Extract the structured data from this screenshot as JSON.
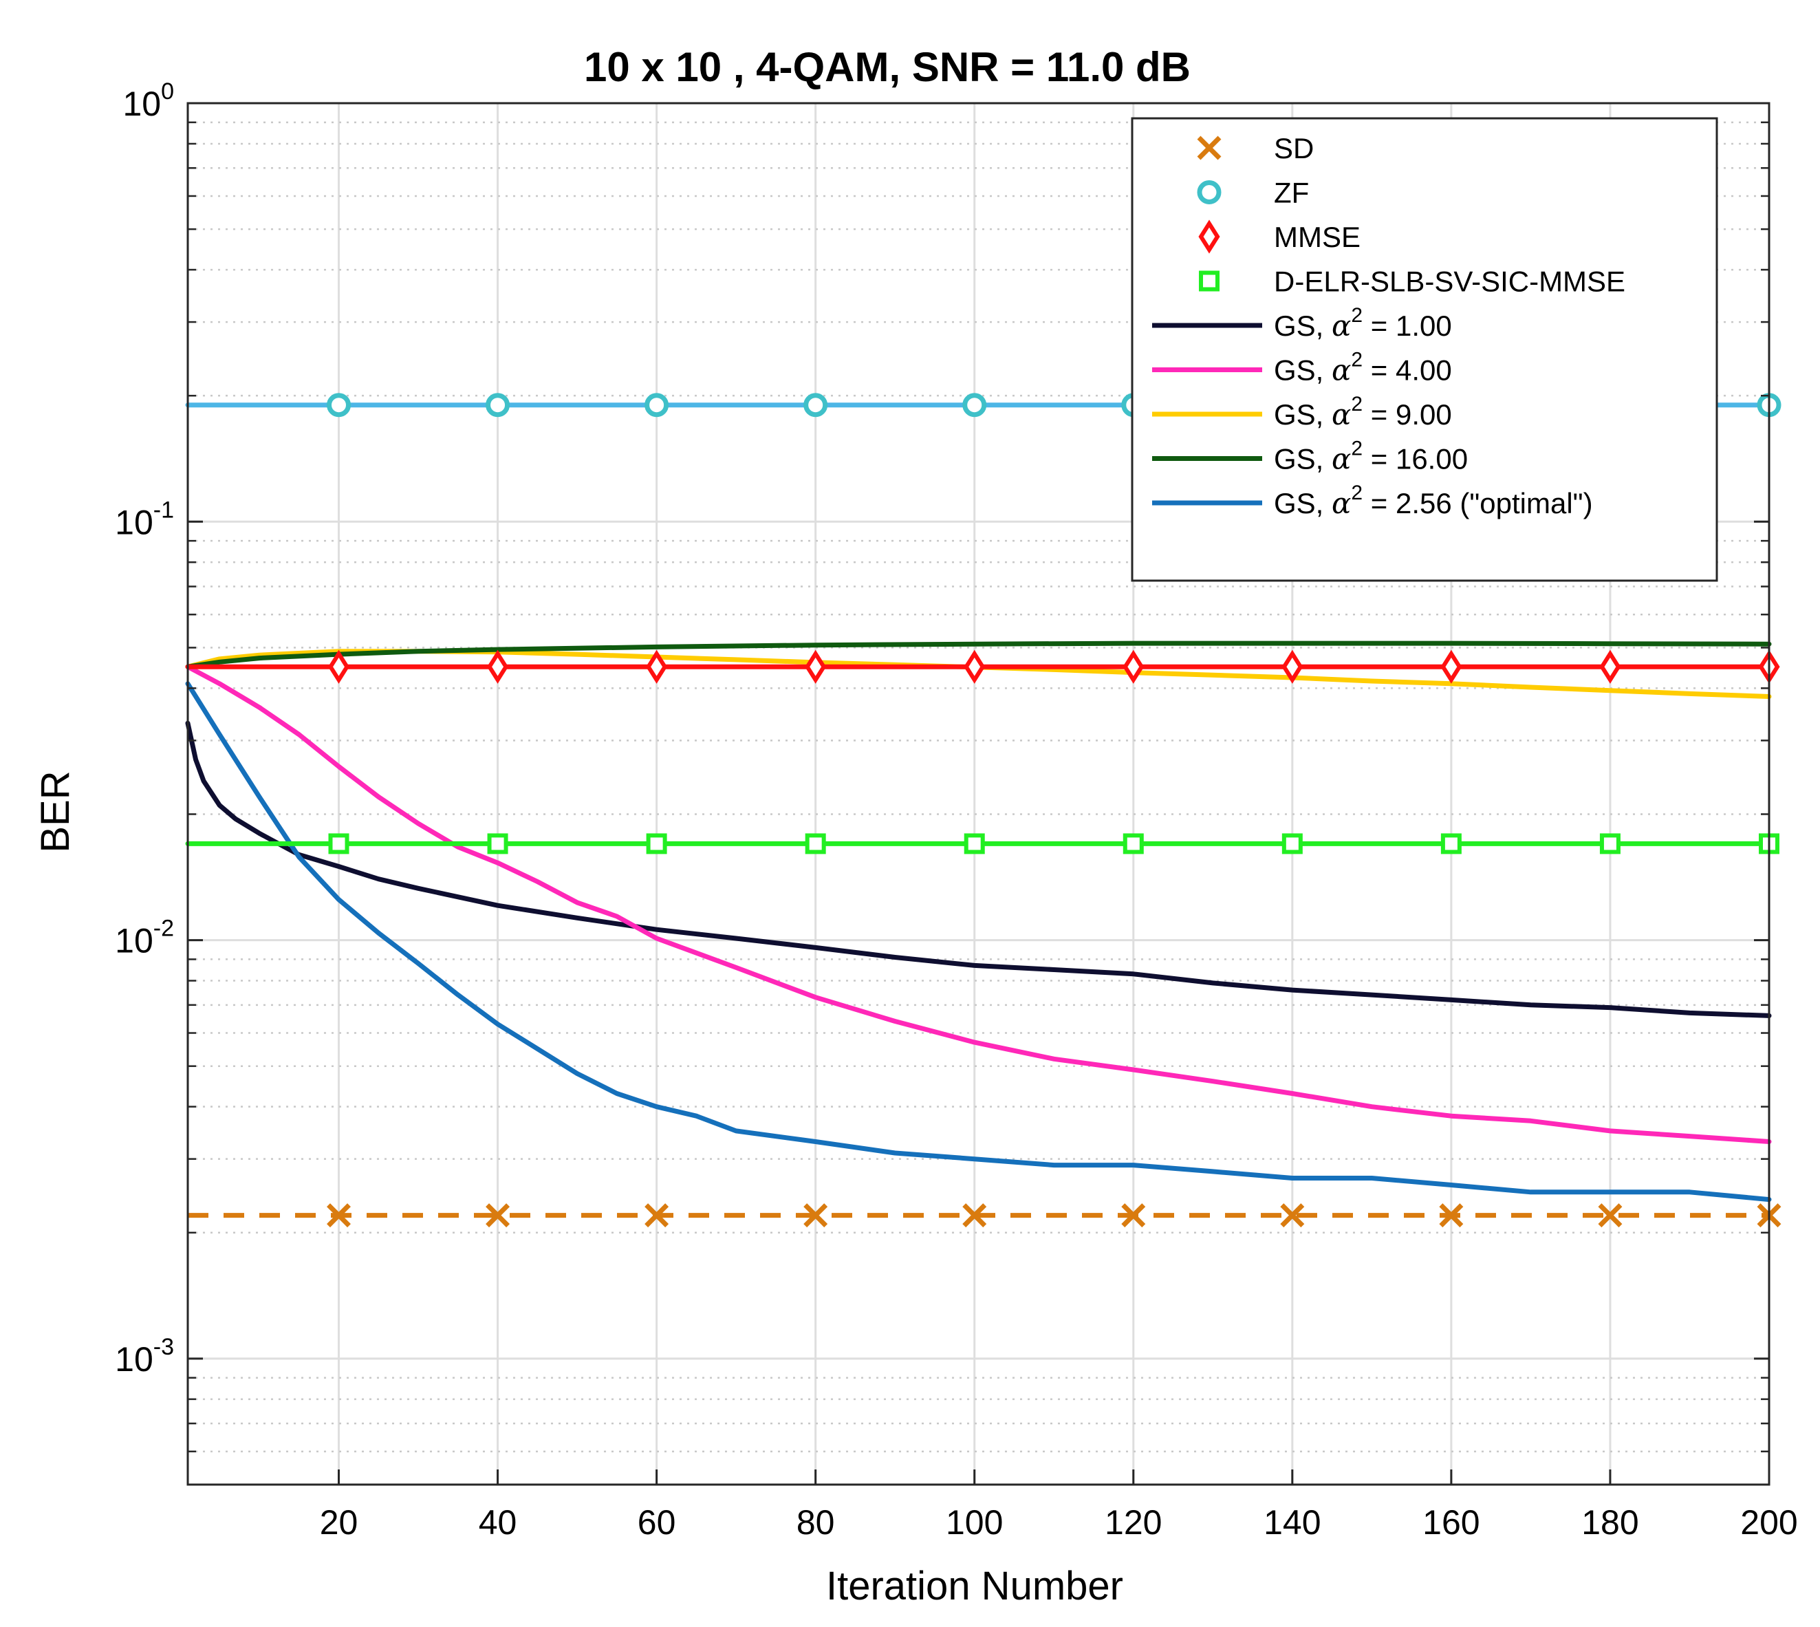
{
  "chart_data": {
    "type": "line",
    "title": "10 x 10 , 4-QAM, SNR = 11.0 dB",
    "xlabel": "Iteration Number",
    "ylabel": "BER",
    "xlim": [
      1,
      200
    ],
    "ylim": [
      0.0005,
      1
    ],
    "yscale": "log",
    "grid": true,
    "legend_position": "top-right",
    "x_ticks": [
      20,
      40,
      60,
      80,
      100,
      120,
      140,
      160,
      180,
      200
    ],
    "x_tick_labels": [
      "20",
      "40",
      "60",
      "80",
      "100",
      "120",
      "140",
      "160",
      "180",
      "200"
    ],
    "y_ticks": [
      {
        "value": 1,
        "base": "10",
        "exp": "0"
      },
      {
        "value": 0.1,
        "base": "10",
        "exp": "-1"
      },
      {
        "value": 0.01,
        "base": "10",
        "exp": "-2"
      },
      {
        "value": 0.001,
        "base": "10",
        "exp": "-3"
      }
    ],
    "marker_x": [
      20,
      40,
      60,
      80,
      100,
      120,
      140,
      160,
      180,
      200
    ],
    "series": [
      {
        "name": "SD",
        "label": "SD",
        "color": "#D97B0F",
        "style": "dashed",
        "marker": "x",
        "legend_line": false,
        "x": [
          1,
          200
        ],
        "y": [
          0.0022,
          0.0022
        ]
      },
      {
        "name": "ZF",
        "label": "ZF",
        "color": "#3FC0C8",
        "line_color": "#4DB6E6",
        "style": "solid",
        "marker": "o",
        "legend_line": false,
        "x": [
          1,
          200
        ],
        "y": [
          0.19,
          0.19
        ]
      },
      {
        "name": "MMSE",
        "label": "MMSE",
        "color": "#FF1010",
        "style": "solid",
        "marker": "diamond",
        "legend_line": false,
        "x": [
          1,
          200
        ],
        "y": [
          0.045,
          0.045
        ]
      },
      {
        "name": "D-ELR-SLB-SV-SIC-MMSE",
        "label": "D-ELR-SLB-SV-SIC-MMSE",
        "color": "#22EE22",
        "style": "solid",
        "marker": "square",
        "legend_line": false,
        "x": [
          1,
          200
        ],
        "y": [
          0.017,
          0.017
        ]
      },
      {
        "name": "GS a2=1.00",
        "label_prefix": "GS, ",
        "label_alpha": "α",
        "label_sup": "2",
        "label_suffix": " = 1.00",
        "color": "#0E0E30",
        "style": "solid",
        "marker": "none",
        "legend_line": true,
        "x": [
          1,
          2,
          3,
          5,
          7,
          10,
          15,
          20,
          25,
          30,
          40,
          50,
          60,
          70,
          80,
          90,
          100,
          110,
          120,
          130,
          140,
          150,
          160,
          170,
          180,
          190,
          200
        ],
        "y": [
          0.033,
          0.027,
          0.024,
          0.021,
          0.0195,
          0.018,
          0.016,
          0.015,
          0.014,
          0.0133,
          0.0121,
          0.0113,
          0.0106,
          0.0101,
          0.0096,
          0.0091,
          0.0087,
          0.0085,
          0.0083,
          0.0079,
          0.0076,
          0.0074,
          0.0072,
          0.007,
          0.0069,
          0.0067,
          0.0066
        ]
      },
      {
        "name": "GS a2=4.00",
        "label_prefix": "GS, ",
        "label_alpha": "α",
        "label_sup": "2",
        "label_suffix": " = 4.00",
        "color": "#FF28B8",
        "style": "solid",
        "marker": "none",
        "legend_line": true,
        "x": [
          1,
          5,
          10,
          15,
          20,
          25,
          30,
          35,
          40,
          45,
          50,
          55,
          60,
          70,
          80,
          90,
          100,
          110,
          120,
          130,
          140,
          150,
          160,
          170,
          180,
          190,
          200
        ],
        "y": [
          0.045,
          0.041,
          0.036,
          0.031,
          0.026,
          0.022,
          0.019,
          0.0167,
          0.0153,
          0.0138,
          0.0123,
          0.0114,
          0.0101,
          0.0086,
          0.0073,
          0.0064,
          0.0057,
          0.0052,
          0.0049,
          0.0046,
          0.0043,
          0.004,
          0.0038,
          0.0037,
          0.0035,
          0.0034,
          0.0033
        ]
      },
      {
        "name": "GS a2=9.00",
        "label_prefix": "GS, ",
        "label_alpha": "α",
        "label_sup": "2",
        "label_suffix": " = 9.00",
        "color": "#FFCC00",
        "style": "solid",
        "marker": "none",
        "legend_line": true,
        "x": [
          1,
          5,
          10,
          20,
          30,
          40,
          50,
          60,
          70,
          80,
          90,
          100,
          110,
          120,
          130,
          140,
          150,
          160,
          170,
          180,
          190,
          200
        ],
        "y": [
          0.045,
          0.047,
          0.048,
          0.049,
          0.049,
          0.0488,
          0.0482,
          0.0475,
          0.0468,
          0.0461,
          0.0455,
          0.0449,
          0.0443,
          0.0436,
          0.043,
          0.0424,
          0.0416,
          0.041,
          0.0402,
          0.0395,
          0.0388,
          0.0382
        ]
      },
      {
        "name": "GS a2=16.00",
        "label_prefix": "GS, ",
        "label_alpha": "α",
        "label_sup": "2",
        "label_suffix": " = 16.00",
        "color": "#0F5A0F",
        "style": "solid",
        "marker": "none",
        "legend_line": true,
        "x": [
          1,
          5,
          10,
          20,
          30,
          40,
          60,
          80,
          100,
          120,
          140,
          160,
          180,
          200
        ],
        "y": [
          0.045,
          0.0462,
          0.0472,
          0.0482,
          0.049,
          0.0495,
          0.0502,
          0.0507,
          0.051,
          0.0512,
          0.0512,
          0.0512,
          0.0511,
          0.051
        ]
      },
      {
        "name": "GS a2=2.56",
        "label_prefix": "GS, ",
        "label_alpha": "α",
        "label_sup": "2",
        "label_suffix": " = 2.56 (\"optimal\")",
        "color": "#1570BB",
        "style": "solid",
        "marker": "none",
        "legend_line": true,
        "x": [
          1,
          5,
          10,
          15,
          20,
          25,
          30,
          35,
          40,
          45,
          50,
          55,
          60,
          65,
          70,
          80,
          90,
          100,
          110,
          120,
          130,
          140,
          150,
          160,
          170,
          180,
          190,
          200
        ],
        "y": [
          0.041,
          0.031,
          0.022,
          0.0158,
          0.0125,
          0.0104,
          0.0088,
          0.0074,
          0.0063,
          0.0055,
          0.0048,
          0.0043,
          0.004,
          0.0038,
          0.0035,
          0.0033,
          0.0031,
          0.003,
          0.0029,
          0.0029,
          0.0028,
          0.0027,
          0.0027,
          0.0026,
          0.0025,
          0.0025,
          0.0025,
          0.0024
        ]
      }
    ]
  }
}
